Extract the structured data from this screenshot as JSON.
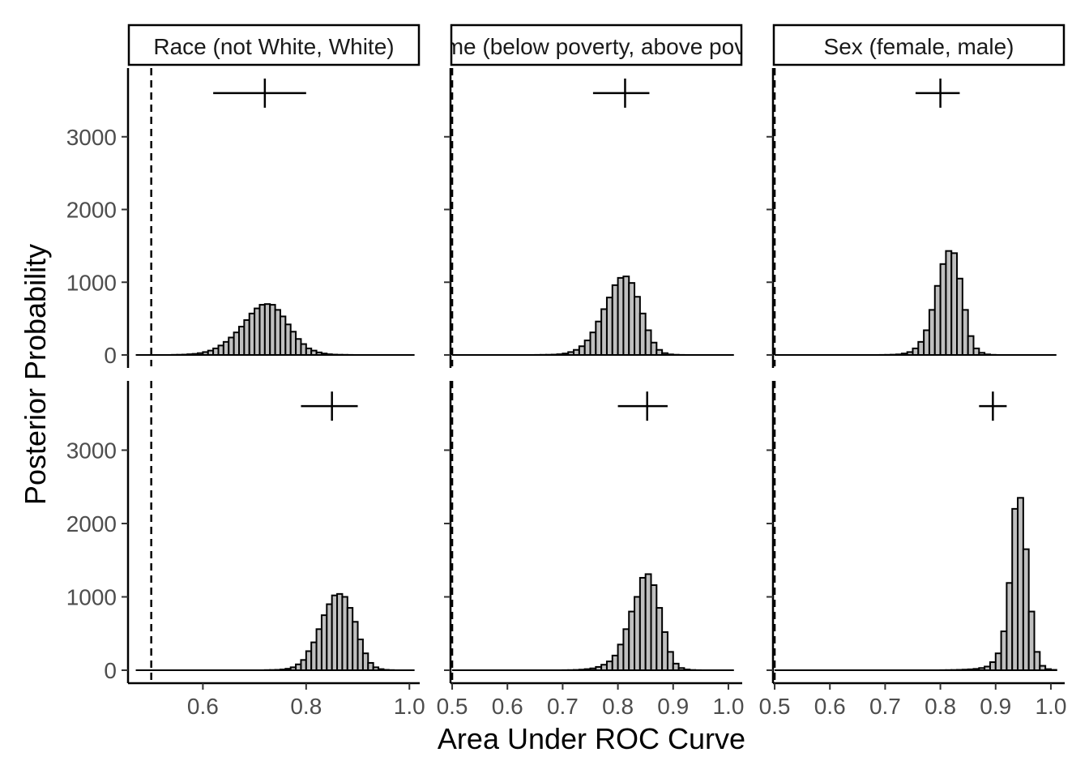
{
  "chart_data": {
    "type": "bar",
    "subtype": "faceted-histogram",
    "xlabel": "Area Under ROC Curve",
    "ylabel": "Posterior Probability",
    "ylim": [
      0,
      3900
    ],
    "y_ticks": [
      0,
      1000,
      2000,
      3000
    ],
    "reference_line": {
      "x": 0.5,
      "style": "dashed"
    },
    "bar_fill": "#bfbfbf",
    "bar_stroke": "#000000",
    "panels": [
      {
        "strip": "Race (not White, White)",
        "xlim": [
          0.455,
          1.02
        ],
        "x_ticks": [
          "0.6",
          "0.8",
          "1.0"
        ],
        "rows": [
          {
            "estimate": {
              "x": 0.72,
              "y": 3600,
              "xmin": 0.62,
              "xmax": 0.8
            },
            "hist": {
              "x0": 0.47,
              "bin_width": 0.01,
              "counts": [
                0,
                0,
                0,
                0,
                0,
                0,
                0,
                2,
                3,
                5,
                10,
                15,
                25,
                40,
                60,
                90,
                130,
                180,
                240,
                310,
                390,
                480,
                570,
                640,
                690,
                700,
                690,
                620,
                530,
                420,
                320,
                220,
                150,
                90,
                60,
                35,
                20,
                10,
                5,
                3,
                2,
                1,
                0,
                0,
                0,
                0,
                0,
                0,
                0,
                0,
                0,
                0,
                0,
                0
              ]
            }
          },
          {
            "estimate": {
              "x": 0.85,
              "y": 3600,
              "xmin": 0.79,
              "xmax": 0.9
            },
            "hist": {
              "x0": 0.47,
              "bin_width": 0.01,
              "counts": [
                0,
                0,
                0,
                0,
                0,
                0,
                0,
                0,
                0,
                0,
                0,
                0,
                0,
                0,
                0,
                0,
                0,
                0,
                0,
                0,
                0,
                0,
                0,
                0,
                0,
                2,
                3,
                5,
                10,
                20,
                40,
                80,
                140,
                260,
                380,
                560,
                750,
                900,
                1020,
                1040,
                1000,
                850,
                660,
                420,
                230,
                100,
                40,
                15,
                5,
                2,
                0,
                0,
                0,
                0
              ]
            }
          }
        ]
      },
      {
        "strip": "Income (below poverty, above poverty)",
        "xlim": [
          0.497,
          1.025
        ],
        "x_ticks": [
          "0.5",
          "0.6",
          "0.7",
          "0.8",
          "0.9",
          "1.0"
        ],
        "rows": [
          {
            "estimate": {
              "x": 0.813,
              "y": 3600,
              "xmin": 0.755,
              "xmax": 0.857
            },
            "hist": {
              "x0": 0.5,
              "bin_width": 0.01,
              "counts": [
                0,
                0,
                0,
                0,
                0,
                0,
                0,
                0,
                0,
                0,
                0,
                0,
                0,
                0,
                0,
                1,
                2,
                3,
                5,
                10,
                20,
                40,
                70,
                120,
                200,
                310,
                460,
                630,
                790,
                960,
                1060,
                1080,
                990,
                800,
                570,
                340,
                170,
                70,
                25,
                8,
                3,
                1,
                0,
                0,
                0,
                0,
                0,
                0,
                0,
                0,
                0
              ]
            }
          },
          {
            "estimate": {
              "x": 0.853,
              "y": 3600,
              "xmin": 0.8,
              "xmax": 0.89
            },
            "hist": {
              "x0": 0.5,
              "bin_width": 0.01,
              "counts": [
                0,
                0,
                0,
                0,
                0,
                0,
                0,
                0,
                0,
                0,
                0,
                0,
                0,
                0,
                0,
                0,
                0,
                0,
                0,
                0,
                1,
                2,
                4,
                8,
                15,
                25,
                45,
                75,
                120,
                200,
                350,
                560,
                800,
                1000,
                1260,
                1310,
                1160,
                850,
                520,
                250,
                90,
                30,
                10,
                3,
                1,
                0,
                0,
                0,
                0,
                0,
                0
              ]
            }
          }
        ]
      },
      {
        "strip": "Sex (female, male)",
        "xlim": [
          0.497,
          1.025
        ],
        "x_ticks": [
          "0.5",
          "0.6",
          "0.7",
          "0.8",
          "0.9",
          "1.0"
        ],
        "rows": [
          {
            "estimate": {
              "x": 0.8,
              "y": 3600,
              "xmin": 0.755,
              "xmax": 0.835
            },
            "hist": {
              "x0": 0.5,
              "bin_width": 0.01,
              "counts": [
                0,
                0,
                0,
                0,
                0,
                0,
                0,
                0,
                0,
                0,
                0,
                0,
                0,
                0,
                0,
                0,
                0,
                0,
                0,
                1,
                2,
                4,
                8,
                20,
                40,
                90,
                180,
                340,
                620,
                950,
                1250,
                1430,
                1400,
                1050,
                620,
                260,
                90,
                30,
                8,
                2,
                0,
                0,
                0,
                0,
                0,
                0,
                0,
                0,
                0,
                0,
                0
              ]
            }
          },
          {
            "estimate": {
              "x": 0.895,
              "y": 3600,
              "xmin": 0.87,
              "xmax": 0.92
            },
            "hist": {
              "x0": 0.5,
              "bin_width": 0.01,
              "counts": [
                0,
                0,
                0,
                0,
                0,
                0,
                0,
                0,
                0,
                0,
                0,
                0,
                0,
                0,
                0,
                0,
                0,
                0,
                0,
                0,
                0,
                0,
                0,
                0,
                0,
                0,
                0,
                0,
                0,
                0,
                1,
                2,
                3,
                5,
                8,
                12,
                18,
                30,
                50,
                110,
                230,
                530,
                1190,
                2200,
                2350,
                1650,
                800,
                250,
                60,
                15,
                5
              ]
            }
          }
        ]
      }
    ]
  }
}
